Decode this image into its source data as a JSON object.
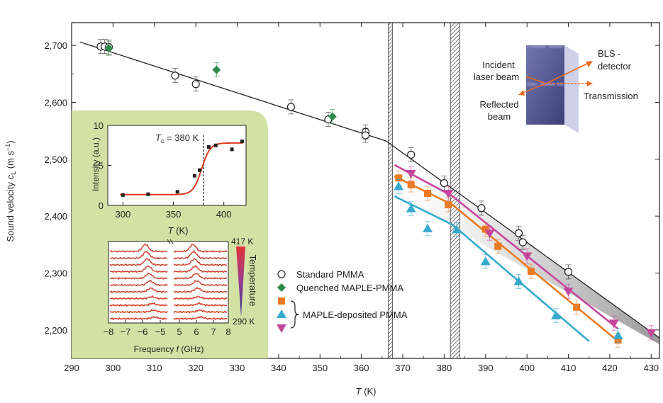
{
  "chart_data": [
    {
      "type": "scatter",
      "xlabel": "T (K)",
      "ylabel": "Sound velocity c_L (m s^-1)",
      "xlim": [
        290,
        432
      ],
      "ylim": [
        2150,
        2740
      ],
      "xticks": [
        290,
        300,
        310,
        320,
        330,
        340,
        350,
        360,
        370,
        380,
        390,
        400,
        410,
        420,
        430
      ],
      "yticks": [
        2200,
        2300,
        2400,
        2500,
        2600,
        2700
      ],
      "ytick_labels": [
        "2,200",
        "2,300",
        "2,400",
        "2,500",
        "2,600",
        "2,700"
      ],
      "hatched_bands": [
        [
          366.5,
          367.5
        ],
        [
          381.5,
          383.8
        ]
      ],
      "fit_lines": [
        {
          "series": "Standard PMMA glassy fit",
          "color": "#231f20",
          "points": [
            [
              292,
              2706
            ],
            [
              366,
              2532
            ]
          ]
        },
        {
          "series": "Standard PMMA high-T fit",
          "color": "#231f20",
          "points": [
            [
              366,
              2532
            ],
            [
              432,
              2186
            ]
          ]
        },
        {
          "series": "MAPLE pink fit",
          "color": "#c6469e",
          "points": [
            [
              368,
              2490
            ],
            [
              382,
              2435
            ],
            [
              422,
              2202
            ]
          ]
        },
        {
          "series": "MAPLE orange fit",
          "color": "#ec7a22",
          "points": [
            [
              368,
              2470
            ],
            [
              382,
              2420
            ],
            [
              422,
              2180
            ]
          ]
        },
        {
          "series": "MAPLE blue fit",
          "color": "#37a9cd",
          "points": [
            [
              368,
              2435
            ],
            [
              382,
              2385
            ],
            [
              415,
              2180
            ]
          ]
        }
      ],
      "series": [
        {
          "name": "Standard PMMA",
          "marker": "open-circle",
          "color": "#231f20",
          "points": [
            [
              297,
              2698
            ],
            [
              298,
              2698
            ],
            [
              299,
              2697
            ],
            [
              315,
              2647
            ],
            [
              320,
              2632
            ],
            [
              343,
              2592
            ],
            [
              352,
              2570
            ],
            [
              361,
              2548
            ],
            [
              361,
              2542
            ],
            [
              372,
              2508
            ],
            [
              380,
              2458
            ],
            [
              389,
              2414
            ],
            [
              398,
              2370
            ],
            [
              399,
              2354
            ],
            [
              410,
              2302
            ]
          ]
        },
        {
          "name": "Quenched MAPLE-PMMA",
          "marker": "diamond",
          "color": "#2e8b4a",
          "points": [
            [
              299,
              2695
            ],
            [
              325,
              2657
            ],
            [
              353,
              2575
            ]
          ]
        },
        {
          "name": "MAPLE-deposited PMMA",
          "marker": "square",
          "color": "#ec7a22",
          "points": [
            [
              369,
              2467
            ],
            [
              372,
              2455
            ],
            [
              376,
              2440
            ],
            [
              381,
              2420
            ],
            [
              390,
              2377
            ],
            [
              393,
              2347
            ],
            [
              401,
              2303
            ],
            [
              412,
              2240
            ],
            [
              422,
              2182
            ]
          ]
        },
        {
          "name": "MAPLE-deposited PMMA",
          "marker": "triangle-up",
          "color": "#37a9cd",
          "points": [
            [
              369,
              2452
            ],
            [
              372,
              2413
            ],
            [
              376,
              2378
            ],
            [
              383,
              2376
            ],
            [
              390,
              2320
            ],
            [
              398,
              2285
            ],
            [
              407,
              2225
            ],
            [
              422,
              2190
            ]
          ]
        },
        {
          "name": "MAPLE-deposited PMMA",
          "marker": "triangle-down",
          "color": "#c6469e",
          "points": [
            [
              372,
              2475
            ],
            [
              381,
              2440
            ],
            [
              391,
              2370
            ],
            [
              400,
              2330
            ],
            [
              410,
              2268
            ],
            [
              421,
              2212
            ],
            [
              430,
              2195
            ]
          ]
        }
      ],
      "legend": [
        {
          "marker": "open-circle",
          "color": "#231f20",
          "label": "Standard PMMA"
        },
        {
          "marker": "diamond",
          "color": "#2e8b4a",
          "label": "Quenched MAPLE-PMMA"
        },
        {
          "marker": "square",
          "color": "#ec7a22",
          "label": ""
        },
        {
          "marker": "triangle-up",
          "color": "#37a9cd",
          "label": "MAPLE-deposited PMMA"
        },
        {
          "marker": "triangle-down",
          "color": "#c6469e",
          "label": ""
        }
      ]
    },
    {
      "type": "scatter",
      "xlabel": "T (K)",
      "ylabel": "Intensity (a.u.)",
      "xlim": [
        285,
        422
      ],
      "ylim": [
        0,
        10
      ],
      "xticks": [
        300,
        350,
        400
      ],
      "yticks": [
        0,
        5,
        10
      ],
      "annotation": "T_c = 380 K",
      "vline_x": 380,
      "points": [
        [
          300,
          1.3
        ],
        [
          325,
          1.4
        ],
        [
          354,
          1.7
        ],
        [
          371,
          3.7
        ],
        [
          376,
          4.4
        ],
        [
          385,
          7.3
        ],
        [
          392,
          7.5
        ],
        [
          408,
          7.0
        ],
        [
          418,
          8.0
        ]
      ],
      "fit_color": "#e03a1e"
    },
    {
      "type": "line",
      "xlabel": "Frequency f (GHz)",
      "xticks": [
        -8,
        -7,
        -6,
        -5,
        5,
        6,
        7,
        8
      ],
      "colorbar": {
        "title": "Temperature",
        "max_label": "417 K",
        "min_label": "290 K"
      }
    }
  ],
  "inset_diagram": {
    "labels": {
      "incident": [
        "Incident",
        "laser beam"
      ],
      "reflected": [
        "Reflected",
        "beam"
      ],
      "detector": [
        "BLS -",
        "detector"
      ],
      "transmission": "Transmission"
    },
    "colors": {
      "arrow": "#ec6c20",
      "film": "#5a5d96",
      "inset_bg": "#d3e1a5"
    }
  },
  "text": {
    "inset_tc": "T",
    "inset_tc_sub": "c",
    "inset_tc_rest": " = 380 K",
    "main_xlabel_T": "T",
    "main_xlabel_rest": " (K)",
    "inset_xlabel_T": "T",
    "inset_xlabel_rest": " (K)",
    "freq_label_pre": "Frequency ",
    "freq_label_f": "f",
    "freq_label_post": " (GHz)",
    "ylabel_pre": "Sound velocity ",
    "ylabel_c": "c",
    "ylabel_sub": "L",
    "ylabel_units_pre": " (m s",
    "ylabel_units_sup": "−1",
    "ylabel_units_post": ")",
    "inset_ylabel": "Intensity (a.u.)",
    "colorbar_title": "Temperature",
    "colorbar_max": "417 K",
    "colorbar_min": "290 K"
  }
}
